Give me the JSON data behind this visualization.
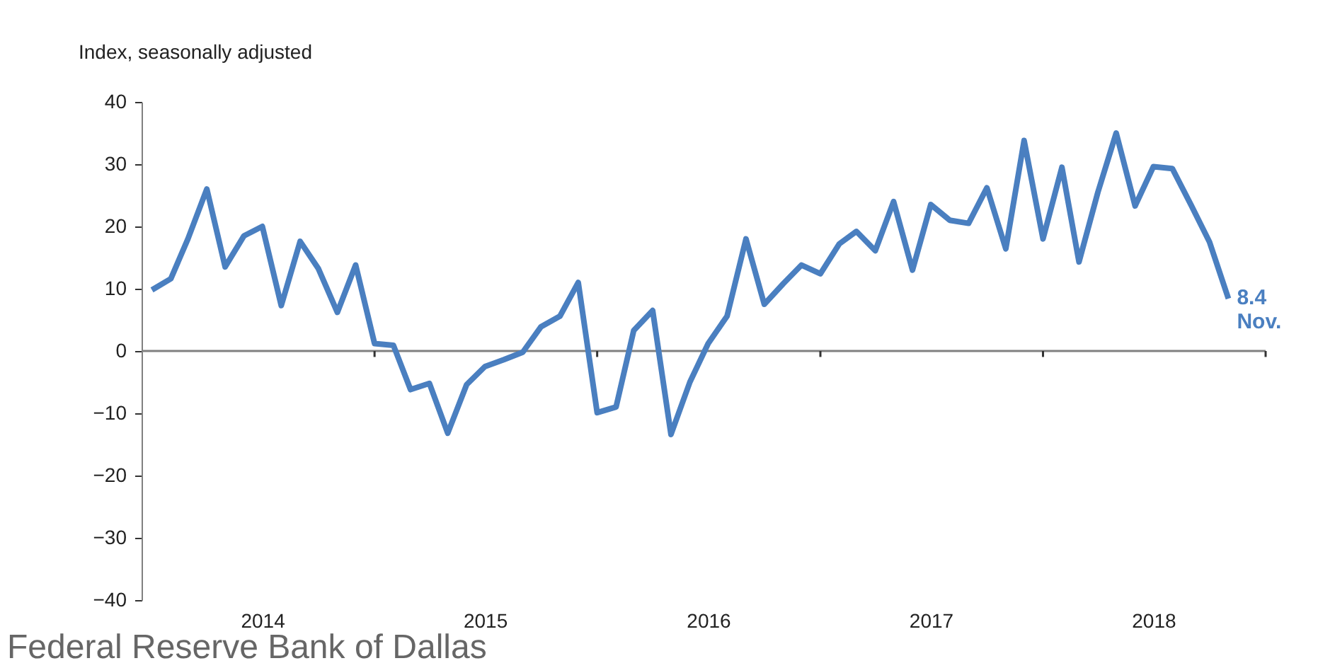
{
  "chart_data": {
    "type": "line",
    "ylabel": "Index, seasonally adjusted",
    "x": [
      "2014-01",
      "2014-02",
      "2014-03",
      "2014-04",
      "2014-05",
      "2014-06",
      "2014-07",
      "2014-08",
      "2014-09",
      "2014-10",
      "2014-11",
      "2014-12",
      "2015-01",
      "2015-02",
      "2015-03",
      "2015-04",
      "2015-05",
      "2015-06",
      "2015-07",
      "2015-08",
      "2015-09",
      "2015-10",
      "2015-11",
      "2015-12",
      "2016-01",
      "2016-02",
      "2016-03",
      "2016-04",
      "2016-05",
      "2016-06",
      "2016-07",
      "2016-08",
      "2016-09",
      "2016-10",
      "2016-11",
      "2016-12",
      "2017-01",
      "2017-02",
      "2017-03",
      "2017-04",
      "2017-05",
      "2017-06",
      "2017-07",
      "2017-08",
      "2017-09",
      "2017-10",
      "2017-11",
      "2017-12",
      "2018-01",
      "2018-02",
      "2018-03",
      "2018-04",
      "2018-05",
      "2018-06",
      "2018-07",
      "2018-08",
      "2018-09",
      "2018-10",
      "2018-11"
    ],
    "series": [
      {
        "color": "#4a7fc0",
        "values": [
          9.8,
          11.6,
          18,
          26,
          13.5,
          18.5,
          20,
          7.3,
          17.6,
          13.2,
          6.2,
          13.8,
          1.2,
          0.9,
          -6.2,
          -5.2,
          -13.2,
          -5.4,
          -2.5,
          -1.4,
          -0.2,
          3.9,
          5.6,
          11,
          -9.9,
          -9,
          3.3,
          6.5,
          -13.4,
          -5,
          1.2,
          5.6,
          18,
          7.5,
          10.8,
          13.8,
          12.4,
          17.2,
          19.2,
          16.1,
          24,
          13,
          23.5,
          21,
          20.5,
          26.2,
          16.4,
          33.8,
          18,
          29.5,
          14.3,
          25.5,
          35,
          23.3,
          29.6,
          29.3,
          23.4,
          17.5,
          8.4
        ]
      }
    ],
    "xlim": [
      "2013-12-15",
      "2019-01-01"
    ],
    "xticks": [
      {
        "value": "2014-07-01",
        "label": "2014"
      },
      {
        "value": "2015-07-01",
        "label": "2015"
      },
      {
        "value": "2016-07-01",
        "label": "2016"
      },
      {
        "value": "2017-07-01",
        "label": "2017"
      },
      {
        "value": "2018-07-01",
        "label": "2018"
      },
      {
        "value": "2015-01-01",
        "label": null
      },
      {
        "value": "2016-01-01",
        "label": null
      },
      {
        "value": "2017-01-01",
        "label": null
      },
      {
        "value": "2018-01-01",
        "label": null
      },
      {
        "value": "2019-01-01",
        "label": null
      }
    ],
    "ylim": [
      -40,
      40
    ],
    "yticks": [
      -40,
      -30,
      -20,
      -10,
      0,
      10,
      20,
      30,
      40
    ],
    "ref_lines": [
      {
        "axis": "y",
        "value": 0,
        "color": "#808080"
      }
    ],
    "annotations": [
      {
        "text": "8.4\nNov.",
        "x": "2018-11",
        "y": 8.4
      },
      "Federal Reserve Bank of Dallas"
    ],
    "grid": false,
    "marker": "none",
    "line_style": "solid"
  }
}
